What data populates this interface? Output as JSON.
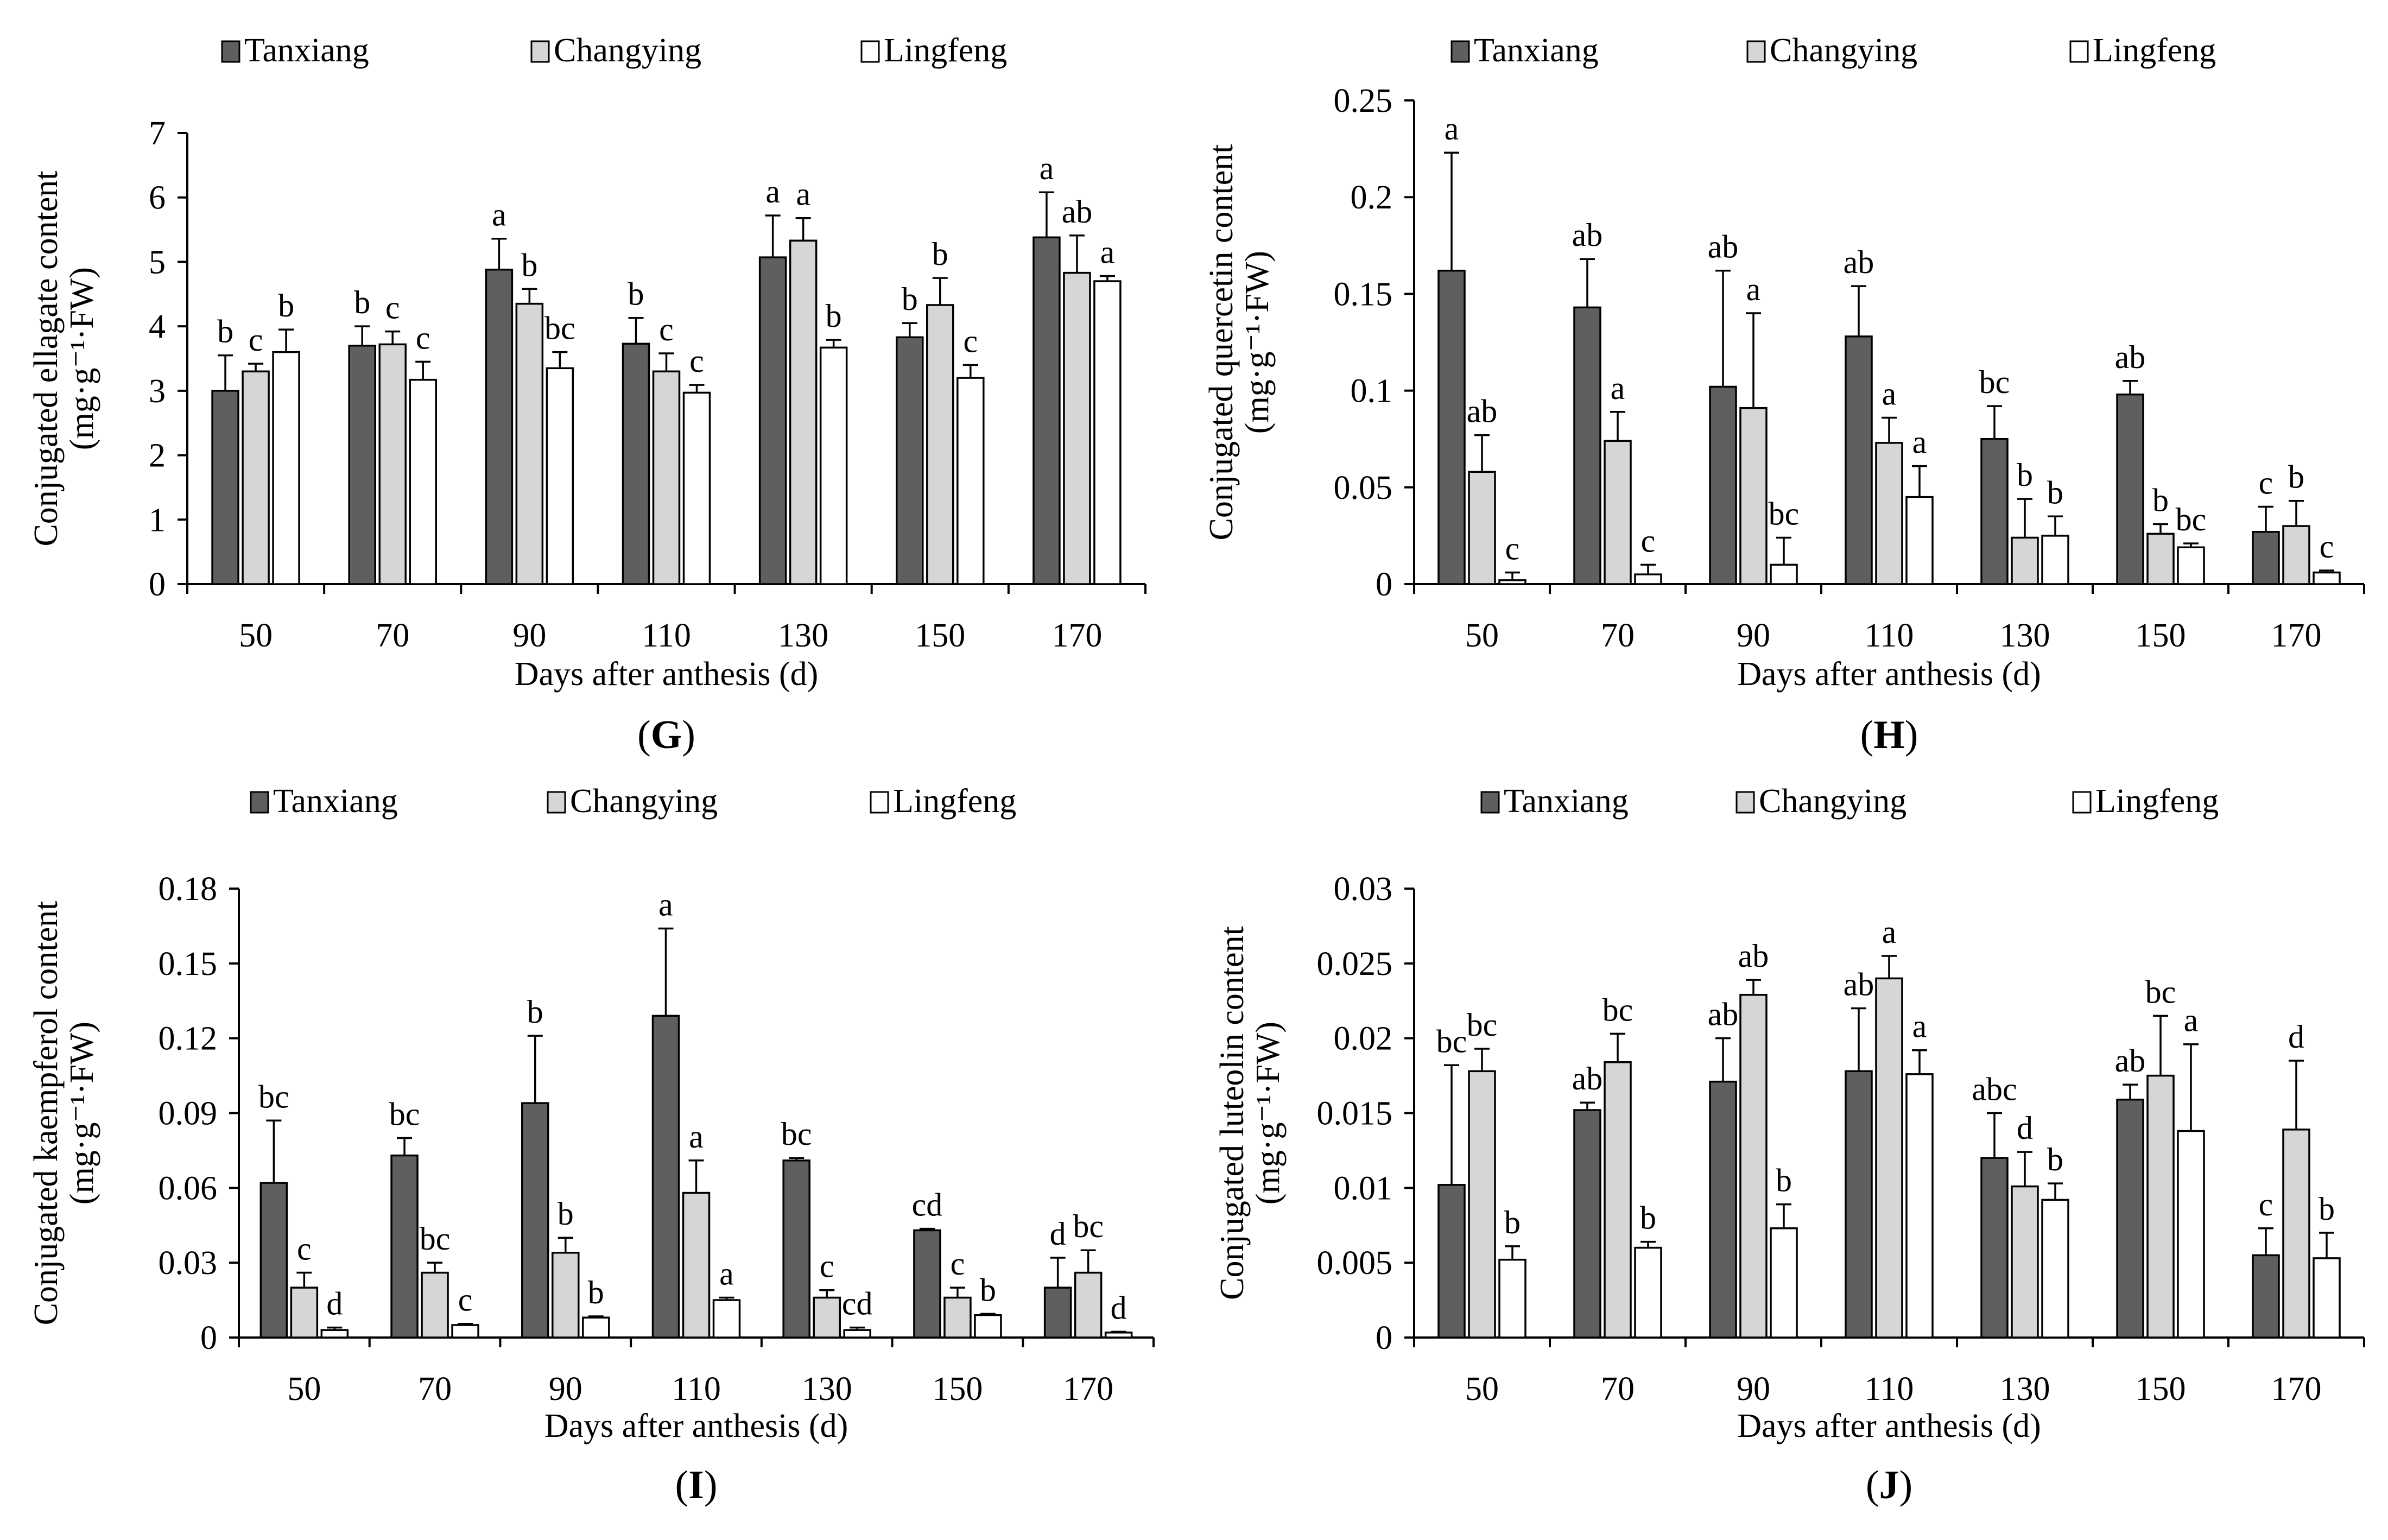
{
  "colors": {
    "Tanxiang": "#5f5f5f",
    "Changying": "#d6d6d6",
    "Lingfeng": "#ffffff",
    "stroke": "#000000"
  },
  "chart_data": [
    {
      "panel": "G",
      "type": "bar",
      "panel_label": "G",
      "ylabel_line1": "Conjugated ellagate content",
      "ylabel_line2": "(mg·g⁻¹·FW)",
      "xlabel": "Days after anthesis (d)",
      "categories": [
        "50",
        "70",
        "90",
        "110",
        "130",
        "150",
        "170"
      ],
      "ylim": [
        0,
        7
      ],
      "ticks": [
        0,
        1,
        2,
        3,
        4,
        5,
        6,
        7
      ],
      "tick_labels": [
        "0",
        "1",
        "2",
        "3",
        "4",
        "5",
        "6",
        "7"
      ],
      "legend": [
        "Tanxiang",
        "Changying",
        "Lingfeng"
      ],
      "series": [
        {
          "name": "Tanxiang",
          "values": [
            3.0,
            3.7,
            4.88,
            3.73,
            5.07,
            3.83,
            5.38
          ],
          "errors": [
            0.55,
            0.3,
            0.48,
            0.4,
            0.65,
            0.22,
            0.7
          ],
          "letters": [
            "b",
            "b",
            "a",
            "b",
            "a",
            "b",
            "a"
          ]
        },
        {
          "name": "Changying",
          "values": [
            3.3,
            3.72,
            4.35,
            3.3,
            5.33,
            4.33,
            4.83
          ],
          "errors": [
            0.12,
            0.2,
            0.23,
            0.28,
            0.35,
            0.42,
            0.58
          ],
          "letters": [
            "c",
            "c",
            "b",
            "c",
            "a",
            "b",
            "ab"
          ]
        },
        {
          "name": "Lingfeng",
          "values": [
            3.6,
            3.17,
            3.35,
            2.97,
            3.67,
            3.2,
            4.7
          ],
          "errors": [
            0.35,
            0.28,
            0.25,
            0.12,
            0.12,
            0.2,
            0.08
          ],
          "letters": [
            "b",
            "c",
            "bc",
            "c",
            "b",
            "c",
            "a"
          ]
        }
      ]
    },
    {
      "panel": "H",
      "type": "bar",
      "panel_label": "H",
      "ylabel_line1": "Conjugated quercetin content",
      "ylabel_line2": "(mg·g⁻¹·FW)",
      "xlabel": "Days after anthesis (d)",
      "categories": [
        "50",
        "70",
        "90",
        "110",
        "130",
        "150",
        "170"
      ],
      "ylim": [
        0,
        0.25
      ],
      "ticks": [
        0,
        0.05,
        0.1,
        0.15,
        0.2,
        0.25
      ],
      "tick_labels": [
        "0",
        "0.05",
        "0.1",
        "0.15",
        "0.2",
        "0.25"
      ],
      "legend": [
        "Tanxiang",
        "Changying",
        "Lingfeng"
      ],
      "series": [
        {
          "name": "Tanxiang",
          "values": [
            0.162,
            0.143,
            0.102,
            0.128,
            0.075,
            0.098,
            0.027
          ],
          "errors": [
            0.061,
            0.025,
            0.06,
            0.026,
            0.017,
            0.007,
            0.013
          ],
          "letters": [
            "a",
            "ab",
            "ab",
            "ab",
            "bc",
            "ab",
            "c"
          ]
        },
        {
          "name": "Changying",
          "values": [
            0.058,
            0.074,
            0.091,
            0.073,
            0.024,
            0.026,
            0.03
          ],
          "errors": [
            0.019,
            0.015,
            0.049,
            0.013,
            0.02,
            0.005,
            0.013
          ],
          "letters": [
            "ab",
            "a",
            "a",
            "a",
            "b",
            "b",
            "b"
          ]
        },
        {
          "name": "Lingfeng",
          "values": [
            0.002,
            0.005,
            0.01,
            0.045,
            0.025,
            0.019,
            0.006
          ],
          "errors": [
            0.004,
            0.005,
            0.014,
            0.016,
            0.01,
            0.002,
            0.001
          ],
          "letters": [
            "c",
            "c",
            "bc",
            "a",
            "b",
            "bc",
            "c"
          ]
        }
      ]
    },
    {
      "panel": "I",
      "type": "bar",
      "panel_label": "I",
      "ylabel_line1": "Conjugated kaempferol content",
      "ylabel_line2": "(mg·g⁻¹·FW)",
      "xlabel": "Days after anthesis (d)",
      "categories": [
        "50",
        "70",
        "90",
        "110",
        "130",
        "150",
        "170"
      ],
      "ylim": [
        0,
        0.18
      ],
      "ticks": [
        0,
        0.03,
        0.06,
        0.09,
        0.12,
        0.15,
        0.18
      ],
      "tick_labels": [
        "0",
        "0.03",
        "0.06",
        "0.09",
        "0.12",
        "0.15",
        "0.18"
      ],
      "legend": [
        "Tanxiang",
        "Changying",
        "Lingfeng"
      ],
      "series": [
        {
          "name": "Tanxiang",
          "values": [
            0.062,
            0.073,
            0.094,
            0.129,
            0.071,
            0.043,
            0.02
          ],
          "errors": [
            0.025,
            0.007,
            0.027,
            0.035,
            0.001,
            0.0006,
            0.012
          ],
          "letters": [
            "bc",
            "bc",
            "b",
            "a",
            "bc",
            "cd",
            "d"
          ]
        },
        {
          "name": "Changying",
          "values": [
            0.02,
            0.026,
            0.034,
            0.058,
            0.016,
            0.016,
            0.026
          ],
          "errors": [
            0.006,
            0.004,
            0.006,
            0.013,
            0.003,
            0.004,
            0.009
          ],
          "letters": [
            "c",
            "bc",
            "b",
            "a",
            "c",
            "c",
            "bc"
          ]
        },
        {
          "name": "Lingfeng",
          "values": [
            0.003,
            0.005,
            0.008,
            0.015,
            0.003,
            0.009,
            0.002
          ],
          "errors": [
            0.001,
            0.0005,
            0.0005,
            0.001,
            0.001,
            0.0005,
            0.0003
          ],
          "letters": [
            "d",
            "c",
            "b",
            "a",
            "cd",
            "b",
            "d"
          ]
        }
      ]
    },
    {
      "panel": "J",
      "type": "bar",
      "panel_label": "J",
      "ylabel_line1": "Conjugated luteolin content",
      "ylabel_line2": "(mg·g⁻¹·FW)",
      "xlabel": "Days after anthesis (d)",
      "categories": [
        "50",
        "70",
        "90",
        "110",
        "130",
        "150",
        "170"
      ],
      "ylim": [
        0,
        0.03
      ],
      "ticks": [
        0,
        0.005,
        0.01,
        0.015,
        0.02,
        0.025,
        0.03
      ],
      "tick_labels": [
        "0",
        "0.005",
        "0.01",
        "0.015",
        "0.02",
        "0.025",
        "0.03"
      ],
      "legend": [
        "Tanxiang",
        "Changying",
        "Lingfeng"
      ],
      "series": [
        {
          "name": "Tanxiang",
          "values": [
            0.0102,
            0.0152,
            0.0171,
            0.0178,
            0.012,
            0.0159,
            0.0055
          ],
          "errors": [
            0.008,
            0.0005,
            0.0029,
            0.0042,
            0.003,
            0.001,
            0.0018
          ],
          "letters": [
            "bc",
            "ab",
            "ab",
            "ab",
            "abc",
            "ab",
            "c"
          ]
        },
        {
          "name": "Changying",
          "values": [
            0.0178,
            0.0184,
            0.0229,
            0.024,
            0.0101,
            0.0175,
            0.0139
          ],
          "errors": [
            0.0015,
            0.0019,
            0.001,
            0.0015,
            0.0023,
            0.004,
            0.0046
          ],
          "letters": [
            "bc",
            "bc",
            "ab",
            "a",
            "d",
            "bc",
            "d"
          ]
        },
        {
          "name": "Lingfeng",
          "values": [
            0.0052,
            0.006,
            0.0073,
            0.0176,
            0.0092,
            0.0138,
            0.0053
          ],
          "errors": [
            0.0009,
            0.0004,
            0.0016,
            0.0016,
            0.0011,
            0.0058,
            0.0017
          ],
          "letters": [
            "b",
            "b",
            "b",
            "a",
            "b",
            "a",
            "b"
          ]
        }
      ]
    }
  ]
}
